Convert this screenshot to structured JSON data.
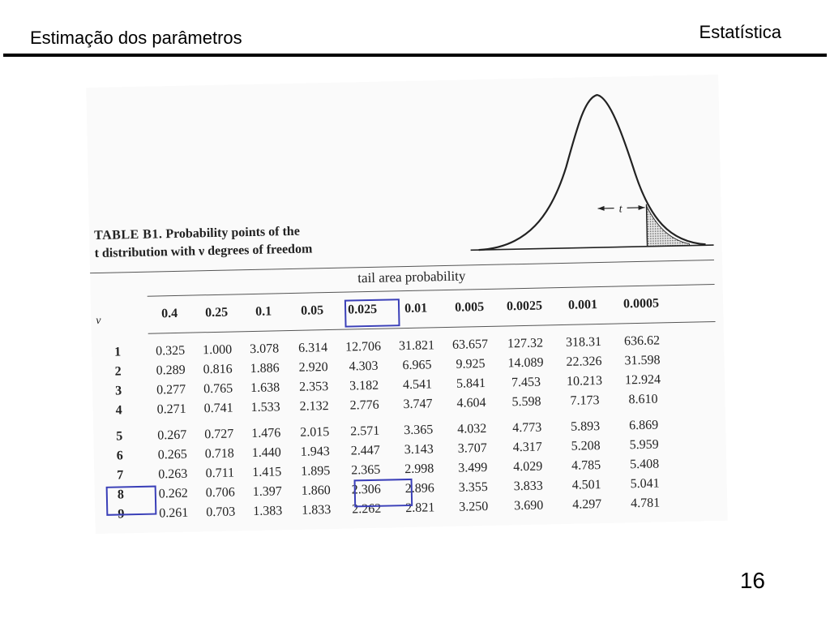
{
  "slide": {
    "title": "Estimação dos parâmetros",
    "subject": "Estatística",
    "page_number": "16"
  },
  "table": {
    "caption_label": "TABLE B1.",
    "caption_text_1": "Probability points of the",
    "caption_text_2": "t distribution with ν degrees of freedom",
    "tail_heading": "tail area probability",
    "nu_symbol": "ν",
    "curve_label": "t",
    "columns": [
      "0.4",
      "0.25",
      "0.1",
      "0.05",
      "0.025",
      "0.01",
      "0.005",
      "0.0025",
      "0.001",
      "0.0005"
    ],
    "rows": [
      {
        "nu": "1",
        "values": [
          "0.325",
          "1.000",
          "3.078",
          "6.314",
          "12.706",
          "31.821",
          "63.657",
          "127.32",
          "318.31",
          "636.62"
        ]
      },
      {
        "nu": "2",
        "values": [
          "0.289",
          "0.816",
          "1.886",
          "2.920",
          "4.303",
          "6.965",
          "9.925",
          "14.089",
          "22.326",
          "31.598"
        ]
      },
      {
        "nu": "3",
        "values": [
          "0.277",
          "0.765",
          "1.638",
          "2.353",
          "3.182",
          "4.541",
          "5.841",
          "7.453",
          "10.213",
          "12.924"
        ]
      },
      {
        "nu": "4",
        "values": [
          "0.271",
          "0.741",
          "1.533",
          "2.132",
          "2.776",
          "3.747",
          "4.604",
          "5.598",
          "7.173",
          "8.610"
        ]
      },
      {
        "nu": "5",
        "values": [
          "0.267",
          "0.727",
          "1.476",
          "2.015",
          "2.571",
          "3.365",
          "4.032",
          "4.773",
          "5.893",
          "6.869"
        ]
      },
      {
        "nu": "6",
        "values": [
          "0.265",
          "0.718",
          "1.440",
          "1.943",
          "2.447",
          "3.143",
          "3.707",
          "4.317",
          "5.208",
          "5.959"
        ]
      },
      {
        "nu": "7",
        "values": [
          "0.263",
          "0.711",
          "1.415",
          "1.895",
          "2.365",
          "2.998",
          "3.499",
          "4.029",
          "4.785",
          "5.408"
        ]
      },
      {
        "nu": "8",
        "values": [
          "0.262",
          "0.706",
          "1.397",
          "1.860",
          "2.306",
          "2.896",
          "3.355",
          "3.833",
          "4.501",
          "5.041"
        ]
      },
      {
        "nu": "9",
        "values": [
          "0.261",
          "0.703",
          "1.383",
          "1.833",
          "2.262",
          "2.821",
          "3.250",
          "3.690",
          "4.297",
          "4.781"
        ]
      }
    ],
    "highlight_color": "#3a3fb8"
  }
}
